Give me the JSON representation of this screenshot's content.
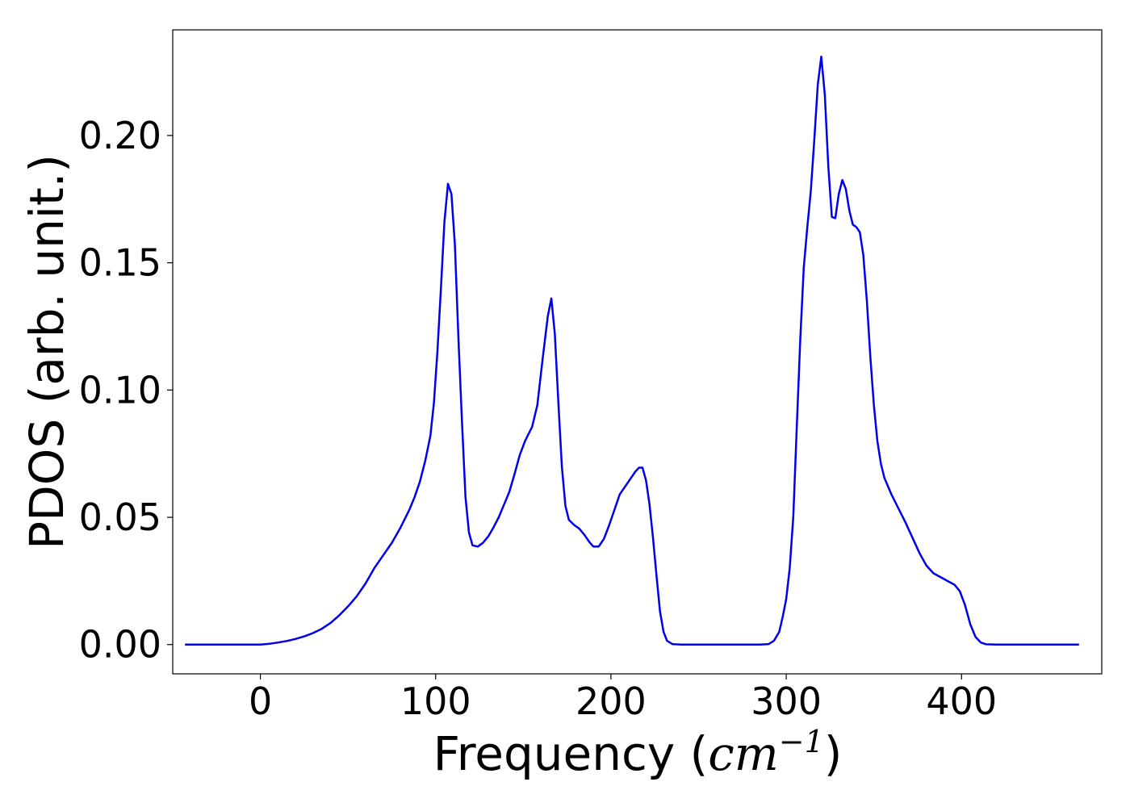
{
  "chart_data": {
    "type": "line",
    "title": "",
    "xlabel": "Frequency (",
    "xlabel_math": "cm",
    "xlabel_sup": "−1",
    "xlabel_close": ")",
    "ylabel": "PDOS (arb. unit.)",
    "xlim": [
      -50,
      480
    ],
    "ylim": [
      -0.0115,
      0.2415
    ],
    "x_ticks": [
      0,
      100,
      200,
      300,
      400
    ],
    "x_tick_labels": [
      "0",
      "100",
      "200",
      "300",
      "400"
    ],
    "y_ticks": [
      0.0,
      0.05,
      0.1,
      0.15,
      0.2
    ],
    "y_tick_labels": [
      "0.00",
      "0.05",
      "0.10",
      "0.15",
      "0.20"
    ],
    "grid": false,
    "legend": "none",
    "series": [
      {
        "color": "#0000ee",
        "points": [
          [
            -43,
            0.0
          ],
          [
            0,
            0.0
          ],
          [
            5,
            0.0003
          ],
          [
            10,
            0.0008
          ],
          [
            15,
            0.0014
          ],
          [
            20,
            0.0022
          ],
          [
            25,
            0.0032
          ],
          [
            30,
            0.0045
          ],
          [
            35,
            0.0062
          ],
          [
            40,
            0.0085
          ],
          [
            45,
            0.0115
          ],
          [
            50,
            0.015
          ],
          [
            55,
            0.019
          ],
          [
            60,
            0.024
          ],
          [
            65,
            0.03
          ],
          [
            70,
            0.035
          ],
          [
            75,
            0.04
          ],
          [
            80,
            0.046
          ],
          [
            85,
            0.053
          ],
          [
            88,
            0.058
          ],
          [
            91,
            0.064
          ],
          [
            94,
            0.072
          ],
          [
            97,
            0.082
          ],
          [
            99,
            0.095
          ],
          [
            101,
            0.115
          ],
          [
            103,
            0.14
          ],
          [
            105,
            0.166
          ],
          [
            107,
            0.181
          ],
          [
            109,
            0.177
          ],
          [
            111,
            0.157
          ],
          [
            113,
            0.12
          ],
          [
            115,
            0.088
          ],
          [
            117,
            0.058
          ],
          [
            119,
            0.044
          ],
          [
            121,
            0.039
          ],
          [
            124,
            0.0385
          ],
          [
            127,
            0.04
          ],
          [
            130,
            0.0425
          ],
          [
            133,
            0.046
          ],
          [
            136,
            0.05
          ],
          [
            139,
            0.055
          ],
          [
            142,
            0.06
          ],
          [
            145,
            0.067
          ],
          [
            148,
            0.0745
          ],
          [
            151,
            0.08
          ],
          [
            155,
            0.0855
          ],
          [
            158,
            0.094
          ],
          [
            161,
            0.112
          ],
          [
            164,
            0.129
          ],
          [
            166,
            0.136
          ],
          [
            168,
            0.122
          ],
          [
            170,
            0.095
          ],
          [
            172,
            0.07
          ],
          [
            174,
            0.0545
          ],
          [
            176,
            0.049
          ],
          [
            179,
            0.047
          ],
          [
            182,
            0.0455
          ],
          [
            185,
            0.043
          ],
          [
            188,
            0.04
          ],
          [
            190,
            0.0385
          ],
          [
            193,
            0.0385
          ],
          [
            196,
            0.0415
          ],
          [
            199,
            0.047
          ],
          [
            202,
            0.053
          ],
          [
            205,
            0.059
          ],
          [
            208,
            0.062
          ],
          [
            211,
            0.065
          ],
          [
            214,
            0.068
          ],
          [
            216,
            0.0695
          ],
          [
            218,
            0.0695
          ],
          [
            220,
            0.0645
          ],
          [
            222,
            0.055
          ],
          [
            224,
            0.042
          ],
          [
            226,
            0.027
          ],
          [
            228,
            0.013
          ],
          [
            230,
            0.005
          ],
          [
            232,
            0.0015
          ],
          [
            235,
            0.0002
          ],
          [
            240,
            0.0
          ],
          [
            255,
            0.0
          ],
          [
            270,
            0.0
          ],
          [
            285,
            0.0
          ],
          [
            290,
            0.0002
          ],
          [
            293,
            0.0015
          ],
          [
            296,
            0.005
          ],
          [
            298,
            0.011
          ],
          [
            300,
            0.018
          ],
          [
            302,
            0.03
          ],
          [
            304,
            0.05
          ],
          [
            306,
            0.085
          ],
          [
            308,
            0.12
          ],
          [
            310,
            0.148
          ],
          [
            312,
            0.164
          ],
          [
            314,
            0.178
          ],
          [
            316,
            0.198
          ],
          [
            318,
            0.22
          ],
          [
            320,
            0.231
          ],
          [
            322,
            0.216
          ],
          [
            324,
            0.188
          ],
          [
            326,
            0.168
          ],
          [
            328,
            0.1675
          ],
          [
            330,
            0.177
          ],
          [
            332,
            0.1825
          ],
          [
            334,
            0.179
          ],
          [
            336,
            0.1705
          ],
          [
            338,
            0.165
          ],
          [
            340,
            0.164
          ],
          [
            342,
            0.162
          ],
          [
            344,
            0.153
          ],
          [
            346,
            0.135
          ],
          [
            348,
            0.113
          ],
          [
            350,
            0.094
          ],
          [
            352,
            0.08
          ],
          [
            354,
            0.071
          ],
          [
            356,
            0.0655
          ],
          [
            360,
            0.059
          ],
          [
            364,
            0.0535
          ],
          [
            368,
            0.048
          ],
          [
            372,
            0.042
          ],
          [
            376,
            0.036
          ],
          [
            380,
            0.031
          ],
          [
            384,
            0.028
          ],
          [
            388,
            0.0265
          ],
          [
            392,
            0.025
          ],
          [
            396,
            0.0235
          ],
          [
            399,
            0.021
          ],
          [
            402,
            0.0155
          ],
          [
            405,
            0.008
          ],
          [
            408,
            0.003
          ],
          [
            411,
            0.0008
          ],
          [
            414,
            0.0001
          ],
          [
            420,
            0.0
          ],
          [
            435,
            0.0
          ],
          [
            467,
            0.0
          ]
        ]
      }
    ]
  }
}
